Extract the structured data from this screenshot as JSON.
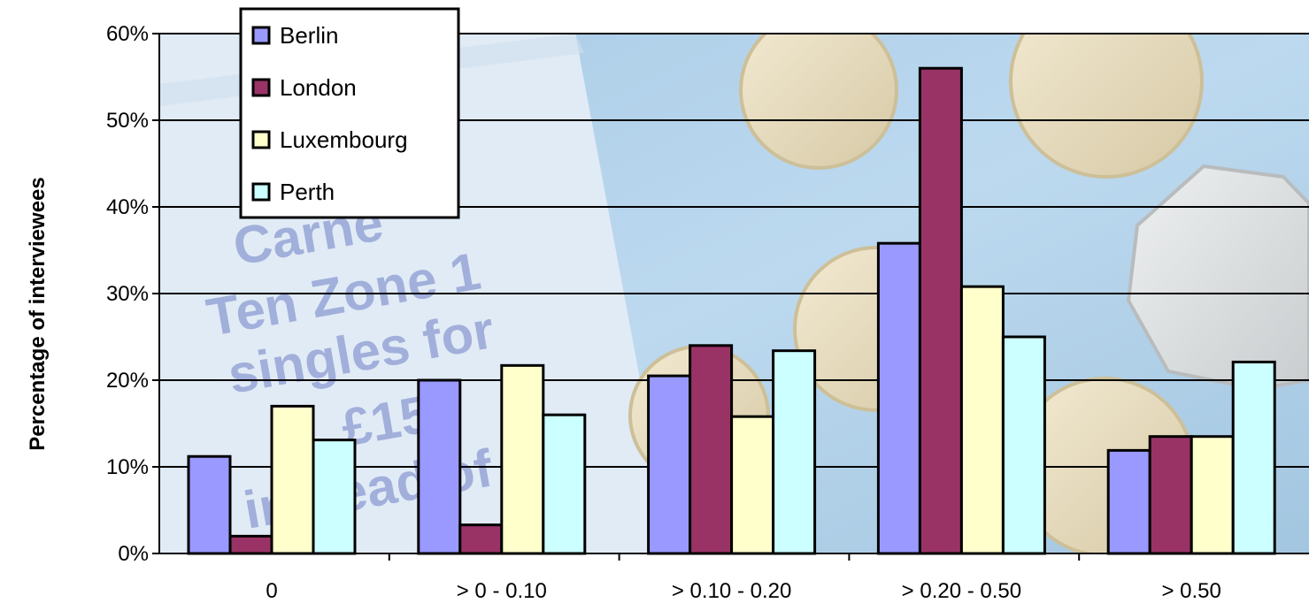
{
  "chart_data": {
    "type": "bar",
    "title": "",
    "xlabel": "",
    "ylabel": "Percentage of interviewees",
    "ylim": [
      0,
      60
    ],
    "ytick_step": 10,
    "ytick_suffix": "%",
    "grid": true,
    "legend_position": "top-left",
    "categories": [
      "0",
      "> 0 - 0.10",
      "> 0.10 - 0.20",
      "> 0.20 - 0.50",
      "> 0.50"
    ],
    "series": [
      {
        "name": "Berlin",
        "color": "#9999ff",
        "values": [
          11.2,
          20.0,
          20.5,
          35.8,
          11.9
        ]
      },
      {
        "name": "London",
        "color": "#993366",
        "values": [
          2.0,
          3.3,
          24.0,
          56.0,
          13.5
        ]
      },
      {
        "name": "Luxembourg",
        "color": "#ffffcc",
        "values": [
          17.0,
          21.7,
          15.8,
          30.8,
          13.5
        ]
      },
      {
        "name": "Perth",
        "color": "#ccffff",
        "values": [
          13.1,
          16.0,
          23.4,
          25.0,
          22.1
        ]
      }
    ]
  },
  "background": {
    "ticket_text_lines": [
      "Carne",
      "Ten Zone 1",
      "singles for",
      "£15",
      "instead of £"
    ]
  }
}
